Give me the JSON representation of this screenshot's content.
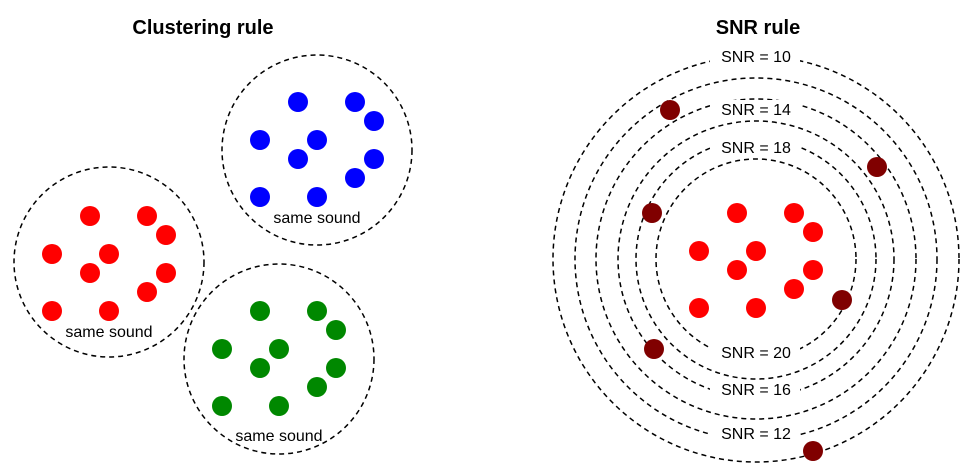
{
  "titles": {
    "clustering": "Clustering rule",
    "snr": "SNR rule"
  },
  "cluster_label": "same sound",
  "snr_labels": {
    "r10": "SNR = 10",
    "r14": "SNR = 14",
    "r18": "SNR = 18",
    "r20": "SNR = 20",
    "r16": "SNR = 16",
    "r12": "SNR = 12"
  },
  "colors": {
    "red": "#ff0000",
    "blue": "#0000ff",
    "green": "#008800",
    "dark_red": "#800000",
    "ring": "#000000"
  }
}
